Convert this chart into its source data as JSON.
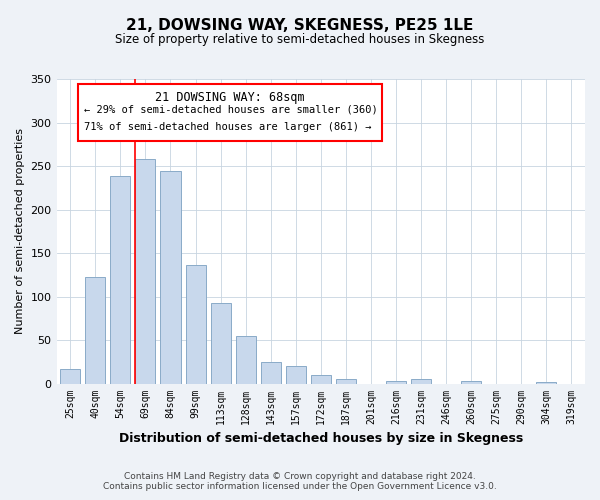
{
  "title": "21, DOWSING WAY, SKEGNESS, PE25 1LE",
  "subtitle": "Size of property relative to semi-detached houses in Skegness",
  "xlabel": "Distribution of semi-detached houses by size in Skegness",
  "ylabel": "Number of semi-detached properties",
  "bar_color": "#c8d8ec",
  "bar_edge_color": "#8aaac8",
  "categories": [
    "25sqm",
    "40sqm",
    "54sqm",
    "69sqm",
    "84sqm",
    "99sqm",
    "113sqm",
    "128sqm",
    "143sqm",
    "157sqm",
    "172sqm",
    "187sqm",
    "201sqm",
    "216sqm",
    "231sqm",
    "246sqm",
    "260sqm",
    "275sqm",
    "290sqm",
    "304sqm",
    "319sqm"
  ],
  "values": [
    17,
    123,
    239,
    258,
    244,
    136,
    93,
    55,
    25,
    20,
    10,
    5,
    0,
    3,
    5,
    0,
    3,
    0,
    0,
    2,
    0
  ],
  "ylim": [
    0,
    350
  ],
  "yticks": [
    0,
    50,
    100,
    150,
    200,
    250,
    300,
    350
  ],
  "property_line_label": "21 DOWSING WAY: 68sqm",
  "annotation_smaller": "← 29% of semi-detached houses are smaller (360)",
  "annotation_larger": "71% of semi-detached houses are larger (861) →",
  "footer_line1": "Contains HM Land Registry data © Crown copyright and database right 2024.",
  "footer_line2": "Contains public sector information licensed under the Open Government Licence v3.0.",
  "background_color": "#eef2f7",
  "plot_background": "#ffffff",
  "grid_color": "#c8d4e0"
}
